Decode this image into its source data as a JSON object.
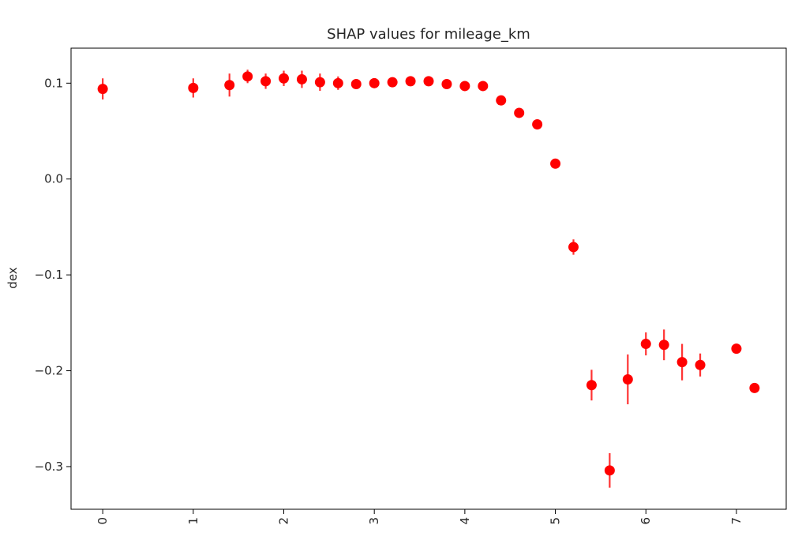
{
  "chart_data": {
    "type": "scatter",
    "title": "SHAP values for mileage_km",
    "xlabel": "",
    "ylabel": "dex",
    "xlim": [
      -0.35,
      7.55
    ],
    "ylim": [
      -0.3445,
      0.1365
    ],
    "xticks": [
      0,
      1,
      2,
      3,
      4,
      5,
      6,
      7
    ],
    "xtick_labels": [
      "0",
      "1",
      "2",
      "3",
      "4",
      "5",
      "6",
      "7"
    ],
    "xtick_rotation": 90,
    "yticks": [
      0.1,
      0.0,
      -0.1,
      -0.2,
      -0.3
    ],
    "ytick_labels": [
      "0.1",
      "0.0",
      "−0.1",
      "−0.2",
      "−0.3"
    ],
    "grid": false,
    "marker_color": "#ff0000",
    "error_color": "#ff3333",
    "series": [
      {
        "name": "mileage_km",
        "points": [
          {
            "x": 0.0,
            "y": 0.094,
            "err": 0.011
          },
          {
            "x": 1.0,
            "y": 0.095,
            "err": 0.01
          },
          {
            "x": 1.4,
            "y": 0.098,
            "err": 0.012
          },
          {
            "x": 1.6,
            "y": 0.107,
            "err": 0.007
          },
          {
            "x": 1.8,
            "y": 0.102,
            "err": 0.008
          },
          {
            "x": 2.0,
            "y": 0.105,
            "err": 0.008
          },
          {
            "x": 2.2,
            "y": 0.104,
            "err": 0.009
          },
          {
            "x": 2.4,
            "y": 0.101,
            "err": 0.009
          },
          {
            "x": 2.6,
            "y": 0.1,
            "err": 0.007
          },
          {
            "x": 2.8,
            "y": 0.099,
            "err": 0.004
          },
          {
            "x": 3.0,
            "y": 0.1,
            "err": 0.004
          },
          {
            "x": 3.2,
            "y": 0.101,
            "err": 0.005
          },
          {
            "x": 3.4,
            "y": 0.102,
            "err": 0.004
          },
          {
            "x": 3.6,
            "y": 0.102,
            "err": 0.004
          },
          {
            "x": 3.8,
            "y": 0.099,
            "err": 0.003
          },
          {
            "x": 4.0,
            "y": 0.097,
            "err": 0.004
          },
          {
            "x": 4.2,
            "y": 0.097,
            "err": 0.004
          },
          {
            "x": 4.4,
            "y": 0.082,
            "err": 0.004
          },
          {
            "x": 4.6,
            "y": 0.069,
            "err": 0.003
          },
          {
            "x": 4.8,
            "y": 0.057,
            "err": 0.005
          },
          {
            "x": 5.0,
            "y": 0.016,
            "err": 0.004
          },
          {
            "x": 5.2,
            "y": -0.071,
            "err": 0.008
          },
          {
            "x": 5.4,
            "y": -0.215,
            "err": 0.016
          },
          {
            "x": 5.6,
            "y": -0.304,
            "err": 0.018
          },
          {
            "x": 5.8,
            "y": -0.209,
            "err": 0.026
          },
          {
            "x": 6.0,
            "y": -0.172,
            "err": 0.012
          },
          {
            "x": 6.2,
            "y": -0.173,
            "err": 0.016
          },
          {
            "x": 6.4,
            "y": -0.191,
            "err": 0.019
          },
          {
            "x": 6.6,
            "y": -0.194,
            "err": 0.012
          },
          {
            "x": 7.0,
            "y": -0.177,
            "err": 0.003
          },
          {
            "x": 7.2,
            "y": -0.218,
            "err": 0.003
          }
        ]
      }
    ]
  }
}
